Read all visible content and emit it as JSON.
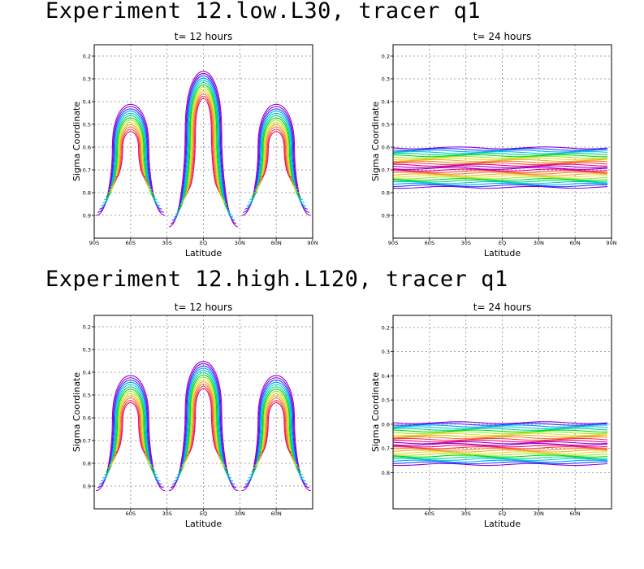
{
  "experiments": [
    {
      "title": "Experiment 12.low.L30, tracer q1"
    },
    {
      "title": "Experiment 12.high.L120, tracer q1"
    }
  ],
  "contour_palette": [
    "#a000c8",
    "#8200dc",
    "#1e3cff",
    "#00a0ff",
    "#00c8c8",
    "#00d28c",
    "#00dc00",
    "#a0e632",
    "#e6dc32",
    "#e6af2d",
    "#f08228",
    "#fa3c3c",
    "#f00082"
  ],
  "chart_data": [
    {
      "type": "contour",
      "experiment": "12.low.L30",
      "title": "t= 12 hours",
      "xlabel": "Latitude",
      "ylabel": "Sigma Coordinate",
      "xticks": [
        "90S",
        "60S",
        "30S",
        "EQ",
        "30N",
        "60N",
        "90N"
      ],
      "yticks": [
        "0.2",
        "0.3",
        "0.4",
        "0.5",
        "0.6",
        "0.7",
        "0.8",
        "0.9"
      ],
      "ylim_reversed": [
        0.15,
        1.0
      ],
      "grid": true,
      "features": [
        {
          "kind": "plume",
          "center_lat": -60,
          "top_sigma": 0.35,
          "base_sigma": 0.9,
          "halfwidth_deg": 15
        },
        {
          "kind": "plume",
          "center_lat": 0,
          "top_sigma": 0.18,
          "base_sigma": 0.95,
          "halfwidth_deg": 15
        },
        {
          "kind": "plume",
          "center_lat": 60,
          "top_sigma": 0.35,
          "base_sigma": 0.9,
          "halfwidth_deg": 15
        }
      ]
    },
    {
      "type": "contour",
      "experiment": "12.low.L30",
      "title": "t= 24 hours",
      "xlabel": "Latitude",
      "ylabel": "Sigma Coordinate",
      "xticks": [
        "90S",
        "60S",
        "30S",
        "EQ",
        "30N",
        "60N",
        "90N"
      ],
      "yticks": [
        "0.2",
        "0.3",
        "0.4",
        "0.5",
        "0.6",
        "0.7",
        "0.8",
        "0.9"
      ],
      "ylim_reversed": [
        0.15,
        1.0
      ],
      "grid": true,
      "features": [
        {
          "kind": "band",
          "top_sigma": 0.6,
          "base_sigma": 0.78
        }
      ]
    },
    {
      "type": "contour",
      "experiment": "12.high.L120",
      "title": "t= 12 hours",
      "xlabel": "Latitude",
      "ylabel": "Sigma Coordinate",
      "xticks": [
        "60S",
        "30S",
        "EQ",
        "30N",
        "60N"
      ],
      "yticks": [
        "0.2",
        "0.3",
        "0.4",
        "0.5",
        "0.6",
        "0.7",
        "0.8",
        "0.9"
      ],
      "ylim_reversed": [
        0.15,
        1.0
      ],
      "grid": true,
      "features": [
        {
          "kind": "plume",
          "center_lat": -60,
          "top_sigma": 0.35,
          "base_sigma": 0.92,
          "halfwidth_deg": 15
        },
        {
          "kind": "plume",
          "center_lat": 0,
          "top_sigma": 0.28,
          "base_sigma": 0.92,
          "halfwidth_deg": 15
        },
        {
          "kind": "plume",
          "center_lat": 60,
          "top_sigma": 0.35,
          "base_sigma": 0.92,
          "halfwidth_deg": 15
        }
      ]
    },
    {
      "type": "contour",
      "experiment": "12.high.L120",
      "title": "t= 24 hours",
      "xlabel": "Latitude",
      "ylabel": "Sigma Coordinate",
      "xticks": [
        "60S",
        "30S",
        "EQ",
        "30N",
        "60N"
      ],
      "yticks": [
        "0.2",
        "0.3",
        "0.4",
        "0.5",
        "0.6",
        "0.7",
        "0.8"
      ],
      "ylim_reversed": [
        0.15,
        0.95
      ],
      "grid": true,
      "features": [
        {
          "kind": "band",
          "top_sigma": 0.59,
          "base_sigma": 0.77
        }
      ]
    }
  ]
}
